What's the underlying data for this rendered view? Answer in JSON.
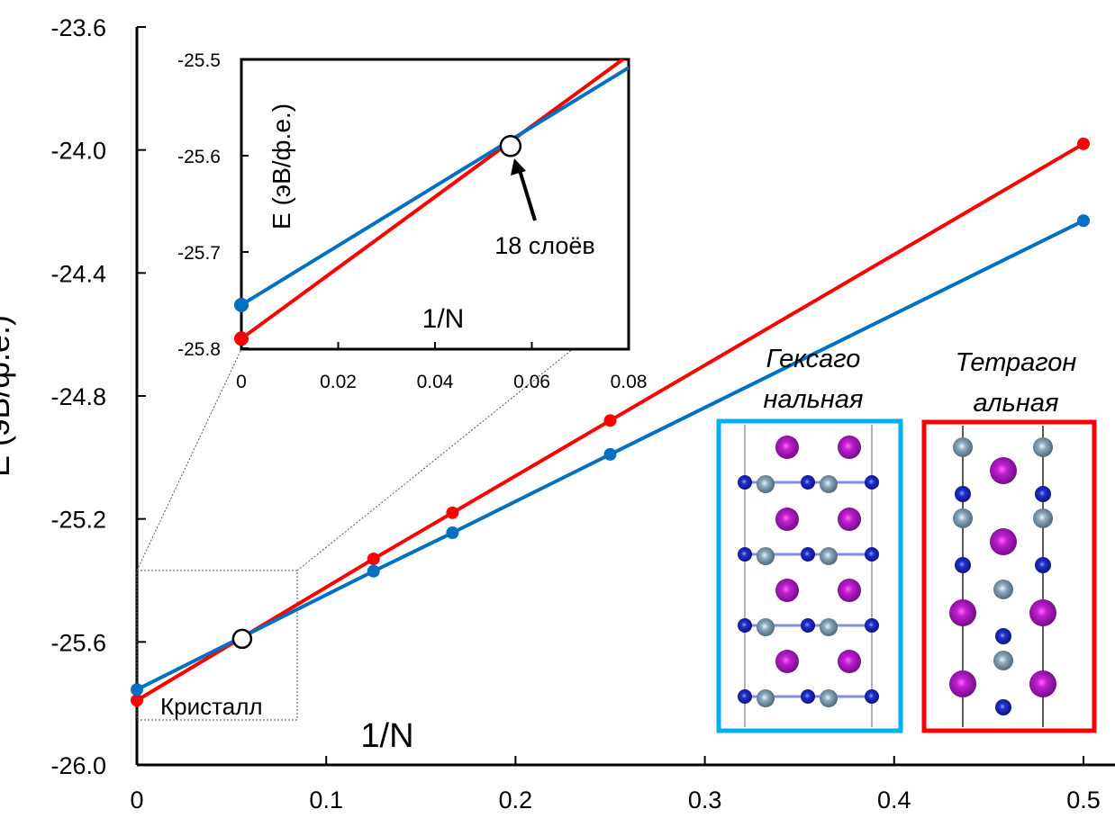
{
  "chart_data": {
    "type": "line",
    "xlabel": "1/N",
    "ylabel": "E (эВ/ф.е.)",
    "xlim": [
      0,
      0.5
    ],
    "ylim": [
      -26.0,
      -23.6
    ],
    "xticks": [
      "0",
      "0.1",
      "0.2",
      "0.3",
      "0.4",
      "0.5"
    ],
    "yticks": [
      "-23.6",
      "-24.0",
      "-24.4",
      "-24.8",
      "-25.2",
      "-25.6",
      "-26.0"
    ],
    "grid": false,
    "x": [
      0,
      0.125,
      0.1667,
      0.25,
      0.5
    ],
    "series": [
      {
        "color": "#ff0000",
        "values": [
          -25.79,
          -25.33,
          -25.18,
          -24.88,
          -23.98
        ]
      },
      {
        "color": "#0070c0",
        "values": [
          -25.755,
          -25.37,
          -25.245,
          -24.99,
          -24.23
        ]
      }
    ],
    "crossing": {
      "x": 0.0556,
      "y": -25.59
    },
    "annotations": {
      "crystal": "Кристалл"
    },
    "inset": {
      "xlabel": "1/N",
      "ylabel": "E (эВ/ф.е.)",
      "xlim": [
        0,
        0.08
      ],
      "ylim": [
        -25.8,
        -25.5
      ],
      "xticks": [
        "0",
        "0.02",
        "0.04",
        "0.06",
        "0.08"
      ],
      "yticks": [
        "-25.5",
        "-25.6",
        "-25.7",
        "-25.8"
      ],
      "crossing_label": "18 слоёв"
    },
    "structures": [
      {
        "label_line1": "Гексаго",
        "label_line2": "нальная",
        "frame_color": "#00b0f0"
      },
      {
        "label_line1": "Тетрагон",
        "label_line2": "альная",
        "frame_color": "#ff0000"
      }
    ]
  }
}
